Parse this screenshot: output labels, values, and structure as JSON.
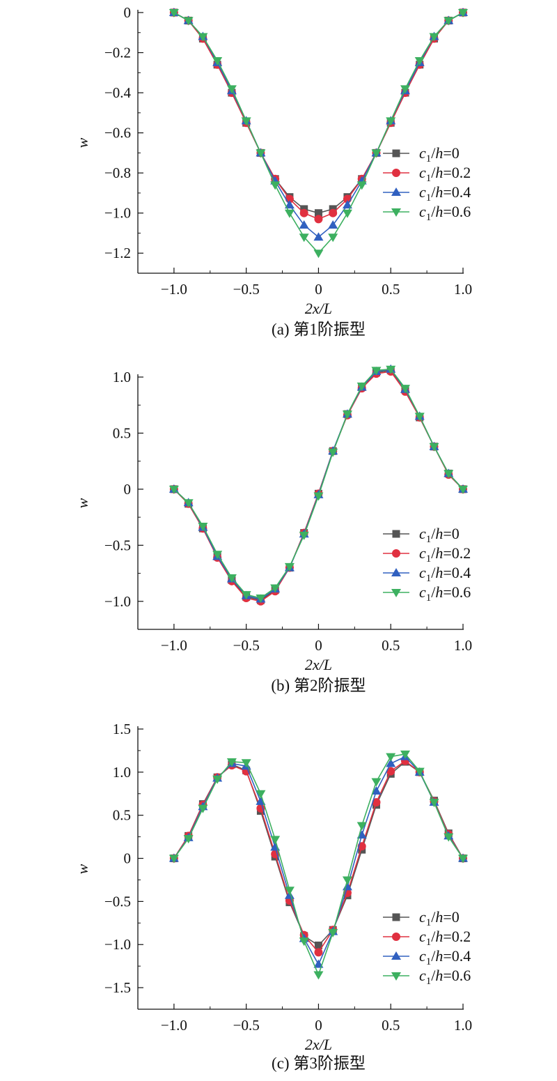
{
  "chart_data": [
    {
      "type": "line",
      "caption": "(a) 第1阶振型",
      "xlabel": "2x/L",
      "ylabel": "w",
      "xlim": [
        -1.25,
        1.0
      ],
      "ylim": [
        -1.3,
        0
      ],
      "xticks": [
        -1.0,
        -0.5,
        0,
        0.5,
        1.0
      ],
      "xtick_labels": [
        "−1.0",
        "−0.5",
        "0",
        "0.5",
        "1.0"
      ],
      "yticks": [
        0,
        -0.2,
        -0.4,
        -0.6,
        -0.8,
        -1.0,
        -1.2
      ],
      "ytick_labels": [
        "0",
        "−0.2",
        "−0.4",
        "−0.6",
        "−0.8",
        "−1.0",
        "−1.2"
      ],
      "legend_position": "right",
      "x": [
        -1.0,
        -0.9,
        -0.8,
        -0.7,
        -0.6,
        -0.5,
        -0.4,
        -0.3,
        -0.2,
        -0.1,
        0,
        0.1,
        0.2,
        0.3,
        0.4,
        0.5,
        0.6,
        0.7,
        0.8,
        0.9,
        1.0
      ],
      "series": [
        {
          "name": "c1/h=0",
          "name_parts": [
            "c",
            "1",
            "/",
            "h",
            "=0"
          ],
          "color": "#555555",
          "marker": "square",
          "values": [
            0,
            -0.04,
            -0.13,
            -0.26,
            -0.4,
            -0.55,
            -0.7,
            -0.83,
            -0.92,
            -0.98,
            -1.0,
            -0.98,
            -0.92,
            -0.83,
            -0.7,
            -0.55,
            -0.4,
            -0.26,
            -0.13,
            -0.04,
            0
          ]
        },
        {
          "name": "c1/h=0.2",
          "name_parts": [
            "c",
            "1",
            "/",
            "h",
            "=0.2"
          ],
          "color": "#e03040",
          "marker": "circle",
          "values": [
            0,
            -0.04,
            -0.13,
            -0.26,
            -0.4,
            -0.55,
            -0.7,
            -0.83,
            -0.93,
            -1.0,
            -1.03,
            -1.0,
            -0.93,
            -0.83,
            -0.7,
            -0.55,
            -0.4,
            -0.26,
            -0.13,
            -0.04,
            0
          ]
        },
        {
          "name": "c1/h=0.4",
          "name_parts": [
            "c",
            "1",
            "/",
            "h",
            "=0.4"
          ],
          "color": "#3060c0",
          "marker": "triangle-up",
          "values": [
            0,
            -0.04,
            -0.12,
            -0.25,
            -0.39,
            -0.54,
            -0.7,
            -0.84,
            -0.96,
            -1.06,
            -1.12,
            -1.06,
            -0.96,
            -0.84,
            -0.7,
            -0.54,
            -0.39,
            -0.25,
            -0.12,
            -0.04,
            0
          ]
        },
        {
          "name": "c1/h=0.6",
          "name_parts": [
            "c",
            "1",
            "/",
            "h",
            "=0.6"
          ],
          "color": "#3db060",
          "marker": "triangle-down",
          "values": [
            0,
            -0.04,
            -0.12,
            -0.24,
            -0.38,
            -0.54,
            -0.7,
            -0.86,
            -1.0,
            -1.12,
            -1.2,
            -1.12,
            -1.0,
            -0.86,
            -0.7,
            -0.54,
            -0.38,
            -0.24,
            -0.12,
            -0.04,
            0
          ]
        }
      ]
    },
    {
      "type": "line",
      "caption": "(b) 第2阶振型",
      "xlabel": "2x/L",
      "ylabel": "w",
      "xlim": [
        -1.25,
        1.0
      ],
      "ylim": [
        -1.25,
        1.0
      ],
      "xticks": [
        -1.0,
        -0.5,
        0,
        0.5,
        1.0
      ],
      "xtick_labels": [
        "−1.0",
        "−0.5",
        "0",
        "0.5",
        "1.0"
      ],
      "yticks": [
        1.0,
        0.5,
        0,
        -0.5,
        -1.0
      ],
      "ytick_labels": [
        "1.0",
        "0.5",
        "0",
        "−0.5",
        "−1.0"
      ],
      "legend_position": "lower-right",
      "x": [
        -1.0,
        -0.9,
        -0.8,
        -0.7,
        -0.6,
        -0.5,
        -0.4,
        -0.3,
        -0.2,
        -0.1,
        0,
        0.1,
        0.2,
        0.3,
        0.4,
        0.5,
        0.6,
        0.7,
        0.8,
        0.9,
        1.0
      ],
      "series": [
        {
          "name": "c1/h=0",
          "name_parts": [
            "c",
            "1",
            "/",
            "h",
            "=0"
          ],
          "color": "#555555",
          "marker": "square",
          "values": [
            0,
            -0.13,
            -0.35,
            -0.6,
            -0.81,
            -0.96,
            -0.99,
            -0.9,
            -0.7,
            -0.39,
            -0.04,
            0.34,
            0.67,
            0.91,
            1.04,
            1.06,
            0.89,
            0.64,
            0.38,
            0.14,
            0
          ]
        },
        {
          "name": "c1/h=0.2",
          "name_parts": [
            "c",
            "1",
            "/",
            "h",
            "=0.2"
          ],
          "color": "#e03040",
          "marker": "circle",
          "values": [
            0,
            -0.13,
            -0.35,
            -0.61,
            -0.82,
            -0.97,
            -1.0,
            -0.91,
            -0.7,
            -0.39,
            -0.04,
            0.34,
            0.66,
            0.9,
            1.03,
            1.05,
            0.87,
            0.64,
            0.38,
            0.13,
            0
          ]
        },
        {
          "name": "c1/h=0.4",
          "name_parts": [
            "c",
            "1",
            "/",
            "h",
            "=0.4"
          ],
          "color": "#3060c0",
          "marker": "triangle-up",
          "values": [
            0,
            -0.12,
            -0.34,
            -0.6,
            -0.8,
            -0.95,
            -0.98,
            -0.89,
            -0.7,
            -0.4,
            -0.05,
            0.34,
            0.67,
            0.91,
            1.05,
            1.07,
            0.89,
            0.65,
            0.38,
            0.14,
            0
          ]
        },
        {
          "name": "c1/h=0.6",
          "name_parts": [
            "c",
            "1",
            "/",
            "h",
            "=0.6"
          ],
          "color": "#3db060",
          "marker": "triangle-down",
          "values": [
            0,
            -0.12,
            -0.33,
            -0.58,
            -0.79,
            -0.94,
            -0.97,
            -0.88,
            -0.69,
            -0.41,
            -0.06,
            0.33,
            0.67,
            0.92,
            1.06,
            1.07,
            0.9,
            0.65,
            0.38,
            0.14,
            0
          ]
        }
      ]
    },
    {
      "type": "line",
      "caption": "(c) 第3阶振型",
      "xlabel": "2x/L",
      "ylabel": "w",
      "xlim": [
        -1.25,
        1.0
      ],
      "ylim": [
        -1.75,
        1.5
      ],
      "xticks": [
        -1.0,
        -0.5,
        0,
        0.5,
        1.0
      ],
      "xtick_labels": [
        "−1.0",
        "−0.5",
        "0",
        "0.5",
        "1.0"
      ],
      "yticks": [
        1.5,
        1.0,
        0.5,
        0,
        -0.5,
        -1.0,
        -1.5
      ],
      "ytick_labels": [
        "1.5",
        "1.0",
        "0.5",
        "0",
        "−0.5",
        "−1.0",
        "−1.5"
      ],
      "legend_position": "lower-right",
      "x": [
        -1.0,
        -0.9,
        -0.8,
        -0.7,
        -0.6,
        -0.5,
        -0.4,
        -0.3,
        -0.2,
        -0.1,
        0,
        0.1,
        0.2,
        0.3,
        0.4,
        0.5,
        0.6,
        0.7,
        0.8,
        0.9,
        1.0
      ],
      "series": [
        {
          "name": "c1/h=0",
          "name_parts": [
            "c",
            "1",
            "/",
            "h",
            "=0"
          ],
          "color": "#555555",
          "marker": "square",
          "values": [
            0,
            0.26,
            0.63,
            0.94,
            1.09,
            1.02,
            0.55,
            0.02,
            -0.51,
            -0.9,
            -1.01,
            -0.83,
            -0.43,
            0.1,
            0.62,
            0.98,
            1.12,
            1.0,
            0.67,
            0.29,
            0
          ]
        },
        {
          "name": "c1/h=0.2",
          "name_parts": [
            "c",
            "1",
            "/",
            "h",
            "=0.2"
          ],
          "color": "#e03040",
          "marker": "circle",
          "values": [
            0,
            0.26,
            0.62,
            0.94,
            1.08,
            1.01,
            0.58,
            0.05,
            -0.49,
            -0.89,
            -1.09,
            -0.83,
            -0.4,
            0.14,
            0.65,
            1.01,
            1.13,
            1.0,
            0.66,
            0.28,
            0
          ]
        },
        {
          "name": "c1/h=0.4",
          "name_parts": [
            "c",
            "1",
            "/",
            "h",
            "=0.4"
          ],
          "color": "#3060c0",
          "marker": "triangle-up",
          "values": [
            0,
            0.24,
            0.6,
            0.93,
            1.1,
            1.07,
            0.66,
            0.13,
            -0.43,
            -0.93,
            -1.23,
            -0.85,
            -0.33,
            0.27,
            0.78,
            1.1,
            1.18,
            1.0,
            0.65,
            0.26,
            0
          ]
        },
        {
          "name": "c1/h=0.6",
          "name_parts": [
            "c",
            "1",
            "/",
            "h",
            "=0.6"
          ],
          "color": "#3db060",
          "marker": "triangle-down",
          "values": [
            0,
            0.23,
            0.58,
            0.92,
            1.12,
            1.11,
            0.75,
            0.22,
            -0.37,
            -0.96,
            -1.35,
            -0.86,
            -0.25,
            0.38,
            0.89,
            1.18,
            1.21,
            1.01,
            0.65,
            0.25,
            0
          ]
        }
      ]
    }
  ]
}
